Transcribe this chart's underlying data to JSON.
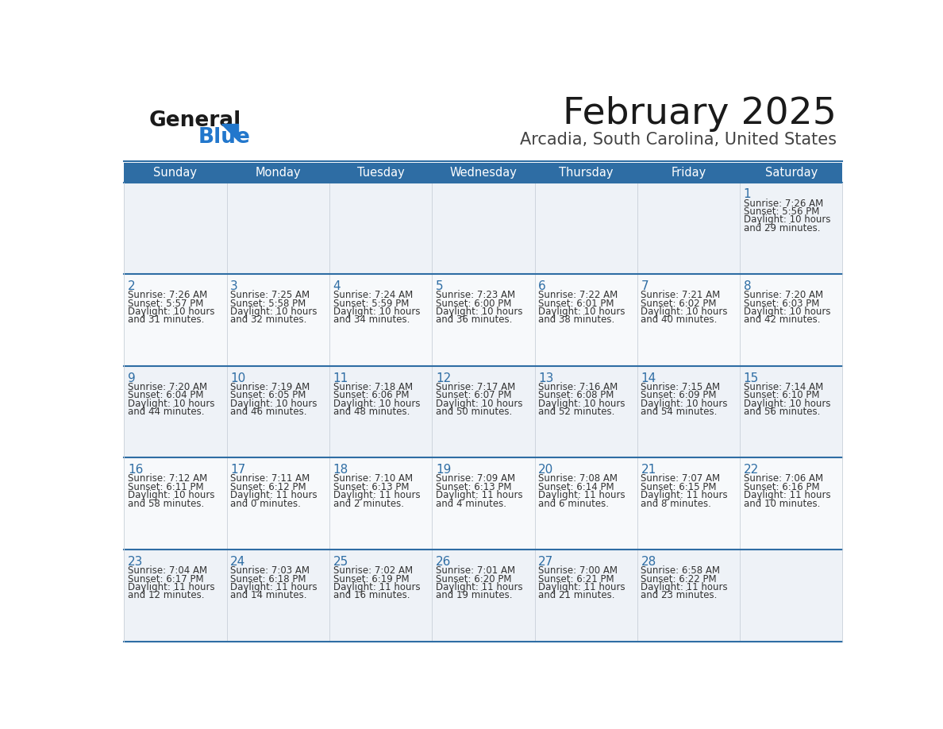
{
  "title": "February 2025",
  "subtitle": "Arcadia, South Carolina, United States",
  "days_of_week": [
    "Sunday",
    "Monday",
    "Tuesday",
    "Wednesday",
    "Thursday",
    "Friday",
    "Saturday"
  ],
  "header_bg": "#2e6da4",
  "header_text": "#ffffff",
  "cell_bg_odd": "#eef2f7",
  "cell_bg_even": "#f7f9fb",
  "border_color": "#2e6da4",
  "title_color": "#1a1a1a",
  "subtitle_color": "#444444",
  "day_number_color": "#2e6da4",
  "cell_text_color": "#333333",
  "logo_general_color": "#1a1a1a",
  "logo_blue_color": "#2277cc",
  "logo_triangle_color": "#2277cc",
  "calendar_data": [
    [
      null,
      null,
      null,
      null,
      null,
      null,
      {
        "day": 1,
        "sunrise": "7:26 AM",
        "sunset": "5:56 PM",
        "daylight_line1": "Daylight: 10 hours",
        "daylight_line2": "and 29 minutes."
      }
    ],
    [
      {
        "day": 2,
        "sunrise": "7:26 AM",
        "sunset": "5:57 PM",
        "daylight_line1": "Daylight: 10 hours",
        "daylight_line2": "and 31 minutes."
      },
      {
        "day": 3,
        "sunrise": "7:25 AM",
        "sunset": "5:58 PM",
        "daylight_line1": "Daylight: 10 hours",
        "daylight_line2": "and 32 minutes."
      },
      {
        "day": 4,
        "sunrise": "7:24 AM",
        "sunset": "5:59 PM",
        "daylight_line1": "Daylight: 10 hours",
        "daylight_line2": "and 34 minutes."
      },
      {
        "day": 5,
        "sunrise": "7:23 AM",
        "sunset": "6:00 PM",
        "daylight_line1": "Daylight: 10 hours",
        "daylight_line2": "and 36 minutes."
      },
      {
        "day": 6,
        "sunrise": "7:22 AM",
        "sunset": "6:01 PM",
        "daylight_line1": "Daylight: 10 hours",
        "daylight_line2": "and 38 minutes."
      },
      {
        "day": 7,
        "sunrise": "7:21 AM",
        "sunset": "6:02 PM",
        "daylight_line1": "Daylight: 10 hours",
        "daylight_line2": "and 40 minutes."
      },
      {
        "day": 8,
        "sunrise": "7:20 AM",
        "sunset": "6:03 PM",
        "daylight_line1": "Daylight: 10 hours",
        "daylight_line2": "and 42 minutes."
      }
    ],
    [
      {
        "day": 9,
        "sunrise": "7:20 AM",
        "sunset": "6:04 PM",
        "daylight_line1": "Daylight: 10 hours",
        "daylight_line2": "and 44 minutes."
      },
      {
        "day": 10,
        "sunrise": "7:19 AM",
        "sunset": "6:05 PM",
        "daylight_line1": "Daylight: 10 hours",
        "daylight_line2": "and 46 minutes."
      },
      {
        "day": 11,
        "sunrise": "7:18 AM",
        "sunset": "6:06 PM",
        "daylight_line1": "Daylight: 10 hours",
        "daylight_line2": "and 48 minutes."
      },
      {
        "day": 12,
        "sunrise": "7:17 AM",
        "sunset": "6:07 PM",
        "daylight_line1": "Daylight: 10 hours",
        "daylight_line2": "and 50 minutes."
      },
      {
        "day": 13,
        "sunrise": "7:16 AM",
        "sunset": "6:08 PM",
        "daylight_line1": "Daylight: 10 hours",
        "daylight_line2": "and 52 minutes."
      },
      {
        "day": 14,
        "sunrise": "7:15 AM",
        "sunset": "6:09 PM",
        "daylight_line1": "Daylight: 10 hours",
        "daylight_line2": "and 54 minutes."
      },
      {
        "day": 15,
        "sunrise": "7:14 AM",
        "sunset": "6:10 PM",
        "daylight_line1": "Daylight: 10 hours",
        "daylight_line2": "and 56 minutes."
      }
    ],
    [
      {
        "day": 16,
        "sunrise": "7:12 AM",
        "sunset": "6:11 PM",
        "daylight_line1": "Daylight: 10 hours",
        "daylight_line2": "and 58 minutes."
      },
      {
        "day": 17,
        "sunrise": "7:11 AM",
        "sunset": "6:12 PM",
        "daylight_line1": "Daylight: 11 hours",
        "daylight_line2": "and 0 minutes."
      },
      {
        "day": 18,
        "sunrise": "7:10 AM",
        "sunset": "6:13 PM",
        "daylight_line1": "Daylight: 11 hours",
        "daylight_line2": "and 2 minutes."
      },
      {
        "day": 19,
        "sunrise": "7:09 AM",
        "sunset": "6:13 PM",
        "daylight_line1": "Daylight: 11 hours",
        "daylight_line2": "and 4 minutes."
      },
      {
        "day": 20,
        "sunrise": "7:08 AM",
        "sunset": "6:14 PM",
        "daylight_line1": "Daylight: 11 hours",
        "daylight_line2": "and 6 minutes."
      },
      {
        "day": 21,
        "sunrise": "7:07 AM",
        "sunset": "6:15 PM",
        "daylight_line1": "Daylight: 11 hours",
        "daylight_line2": "and 8 minutes."
      },
      {
        "day": 22,
        "sunrise": "7:06 AM",
        "sunset": "6:16 PM",
        "daylight_line1": "Daylight: 11 hours",
        "daylight_line2": "and 10 minutes."
      }
    ],
    [
      {
        "day": 23,
        "sunrise": "7:04 AM",
        "sunset": "6:17 PM",
        "daylight_line1": "Daylight: 11 hours",
        "daylight_line2": "and 12 minutes."
      },
      {
        "day": 24,
        "sunrise": "7:03 AM",
        "sunset": "6:18 PM",
        "daylight_line1": "Daylight: 11 hours",
        "daylight_line2": "and 14 minutes."
      },
      {
        "day": 25,
        "sunrise": "7:02 AM",
        "sunset": "6:19 PM",
        "daylight_line1": "Daylight: 11 hours",
        "daylight_line2": "and 16 minutes."
      },
      {
        "day": 26,
        "sunrise": "7:01 AM",
        "sunset": "6:20 PM",
        "daylight_line1": "Daylight: 11 hours",
        "daylight_line2": "and 19 minutes."
      },
      {
        "day": 27,
        "sunrise": "7:00 AM",
        "sunset": "6:21 PM",
        "daylight_line1": "Daylight: 11 hours",
        "daylight_line2": "and 21 minutes."
      },
      {
        "day": 28,
        "sunrise": "6:58 AM",
        "sunset": "6:22 PM",
        "daylight_line1": "Daylight: 11 hours",
        "daylight_line2": "and 23 minutes."
      },
      null
    ]
  ]
}
